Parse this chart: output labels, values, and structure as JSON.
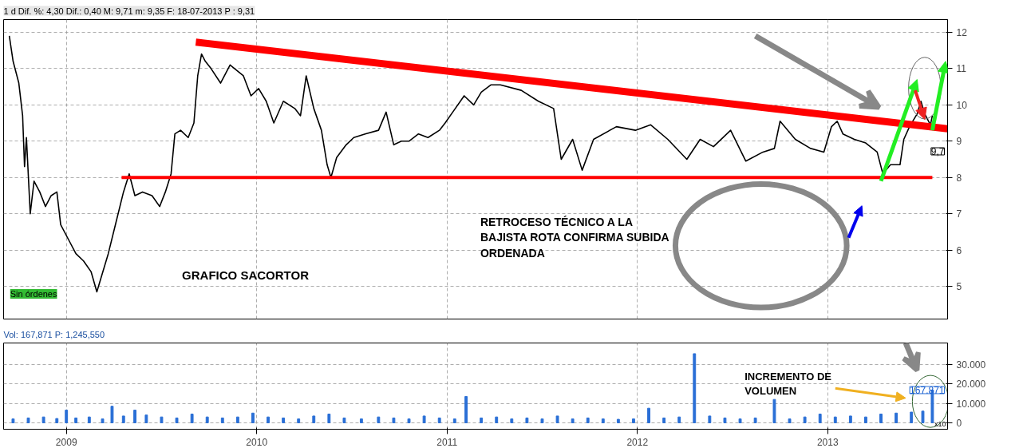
{
  "chart_data": [
    {
      "type": "line",
      "title": "1 d Dif. %: 4,30 Dif.: 0,40 M: 9,71 m: 9,35 F: 18-07-2013 P : 9,31",
      "x": [
        2008.7,
        2008.72,
        2008.75,
        2008.77,
        2008.78,
        2008.79,
        2008.81,
        2008.83,
        2008.86,
        2008.89,
        2008.92,
        2008.95,
        2008.97,
        2009.01,
        2009.05,
        2009.09,
        2009.13,
        2009.16,
        2009.18,
        2009.22,
        2009.26,
        2009.3,
        2009.33,
        2009.36,
        2009.4,
        2009.45,
        2009.49,
        2009.52,
        2009.55,
        2009.57,
        2009.6,
        2009.64,
        2009.67,
        2009.69,
        2009.71,
        2009.73,
        2009.76,
        2009.81,
        2009.86,
        2009.93,
        2009.97,
        2010.01,
        2010.05,
        2010.09,
        2010.14,
        2010.2,
        2010.23,
        2010.26,
        2010.3,
        2010.34,
        2010.37,
        2010.39,
        2010.42,
        2010.47,
        2010.51,
        2010.57,
        2010.64,
        2010.68,
        2010.72,
        2010.76,
        2010.8,
        2010.85,
        2010.9,
        2010.96,
        2010.99,
        2011.03,
        2011.09,
        2011.14,
        2011.18,
        2011.23,
        2011.28,
        2011.39,
        2011.48,
        2011.56,
        2011.6,
        2011.66,
        2011.71,
        2011.77,
        2011.89,
        2011.99,
        2012.07,
        2012.16,
        2012.26,
        2012.33,
        2012.4,
        2012.49,
        2012.57,
        2012.66,
        2012.72,
        2012.75,
        2012.83,
        2012.91,
        2012.98,
        2013.02,
        2013.05,
        2013.08,
        2013.14,
        2013.2,
        2013.26,
        2013.29,
        2013.33,
        2013.38,
        2013.4,
        2013.43,
        2013.47,
        2013.49,
        2013.51,
        2013.54,
        2013.55
      ],
      "series": [
        {
          "color": "#000000",
          "values": [
            11.9,
            11.2,
            10.6,
            9.7,
            8.3,
            9.1,
            7.0,
            7.9,
            7.6,
            7.2,
            7.5,
            7.6,
            6.7,
            6.3,
            5.9,
            5.7,
            5.4,
            4.85,
            5.2,
            5.9,
            6.75,
            7.6,
            8.1,
            7.5,
            7.6,
            7.5,
            7.2,
            7.6,
            8.1,
            9.2,
            9.3,
            9.1,
            9.5,
            10.8,
            11.4,
            11.2,
            11.0,
            10.6,
            11.1,
            10.8,
            10.25,
            10.45,
            10.1,
            9.5,
            10.1,
            9.9,
            9.7,
            10.8,
            9.9,
            9.3,
            8.35,
            8.0,
            8.55,
            8.9,
            9.1,
            9.2,
            9.3,
            9.8,
            8.9,
            9.0,
            9.0,
            9.2,
            9.1,
            9.3,
            9.5,
            9.8,
            10.25,
            10.0,
            10.35,
            10.55,
            10.55,
            10.4,
            10.1,
            9.9,
            8.5,
            9.05,
            8.2,
            9.05,
            9.4,
            9.3,
            9.45,
            9.05,
            8.5,
            9.05,
            8.85,
            9.3,
            8.45,
            8.7,
            8.8,
            9.55,
            9.05,
            8.8,
            8.7,
            9.4,
            9.55,
            9.2,
            9.05,
            8.95,
            8.7,
            8.1,
            8.35,
            8.35,
            9.05,
            9.4,
            9.75,
            10.1,
            9.75,
            9.45,
            9.7
          ]
        },
        {
          "type": "line",
          "color": "#ff0000",
          "x": [
            2009.29,
            2013.55
          ],
          "values": [
            8,
            8
          ]
        },
        {
          "type": "line",
          "color": "#ff0000",
          "x": [
            2009.68,
            2013.63
          ],
          "values": [
            11.73,
            9.34
          ]
        }
      ],
      "xlim": [
        2008.67,
        2013.63
      ],
      "ylim": [
        4.1,
        12.35
      ],
      "xticks": [
        2009,
        2010,
        2011,
        2012,
        2013
      ],
      "yticks": [
        5,
        6,
        7,
        8,
        9,
        10,
        11,
        12
      ],
      "grid": true,
      "tick_labels": "y",
      "annotations": [
        "GRAFICO SACORTOR",
        "RETROCESO TÉCNICO A LA\nBAJISTA ROTA CONFIRMA SUBIDA\nORDENADA",
        "Sin órdenes",
        "9,7"
      ]
    },
    {
      "type": "bar",
      "subtitle": "Vol: 167,871 P: 1,245,550",
      "color": "#2a6fd6",
      "x": [
        2008.72,
        2008.8,
        2008.88,
        2008.95,
        2009.0,
        2009.05,
        2009.12,
        2009.19,
        2009.24,
        2009.3,
        2009.36,
        2009.42,
        2009.5,
        2009.58,
        2009.66,
        2009.74,
        2009.82,
        2009.9,
        2009.98,
        2010.06,
        2010.14,
        2010.22,
        2010.3,
        2010.38,
        2010.46,
        2010.55,
        2010.64,
        2010.72,
        2010.8,
        2010.88,
        2010.96,
        2011.04,
        2011.1,
        2011.18,
        2011.26,
        2011.34,
        2011.42,
        2011.5,
        2011.58,
        2011.66,
        2011.74,
        2011.82,
        2011.9,
        2011.98,
        2012.06,
        2012.14,
        2012.22,
        2012.3,
        2012.38,
        2012.46,
        2012.54,
        2012.62,
        2012.72,
        2012.8,
        2012.88,
        2012.96,
        2013.04,
        2013.12,
        2013.2,
        2013.28,
        2013.36,
        2013.44,
        2013.5,
        2013.55
      ],
      "values": [
        2000,
        2500,
        3000,
        2200,
        6500,
        2500,
        3000,
        2000,
        8500,
        3500,
        6500,
        4000,
        3000,
        2500,
        4500,
        3000,
        2500,
        3000,
        5000,
        3000,
        2500,
        2000,
        3500,
        4500,
        2500,
        2000,
        3000,
        2500,
        2000,
        3500,
        2500,
        2000,
        13500,
        2500,
        3000,
        2000,
        2500,
        2000,
        3500,
        2000,
        2500,
        2000,
        1800,
        2000,
        7500,
        2500,
        3000,
        35500,
        3500,
        2500,
        2000,
        2500,
        12000,
        2000,
        3000,
        4500,
        3000,
        3500,
        3000,
        4500,
        5000,
        5500,
        6000,
        16800
      ],
      "xlim": [
        2008.67,
        2013.63
      ],
      "ylim": [
        -3300,
        41000
      ],
      "xticks": [
        2009,
        2010,
        2011,
        2012,
        2013
      ],
      "yticks": [
        0,
        {
          "value": 10000,
          "label": "10.000"
        },
        {
          "value": 20000,
          "label": "20.000"
        },
        {
          "value": 30000,
          "label": "30.000"
        }
      ],
      "grid": true,
      "annotations": [
        "INCREMENTO DE\nVOLUMEN",
        "x10",
        "167.871"
      ]
    }
  ]
}
